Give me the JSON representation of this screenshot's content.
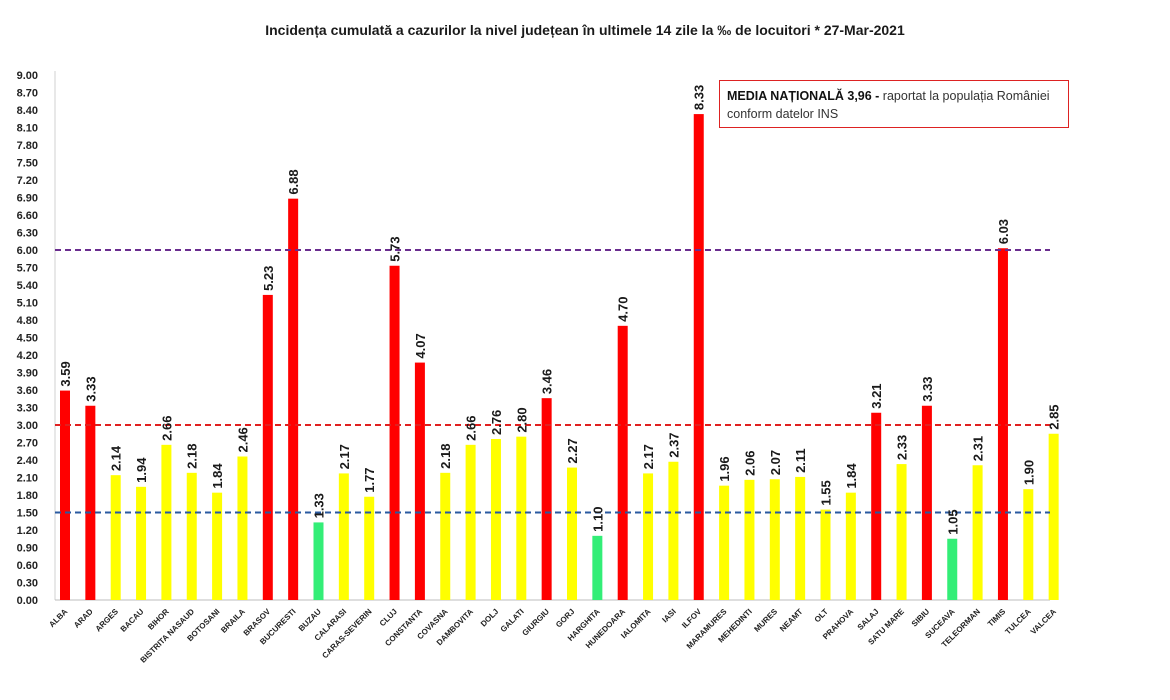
{
  "title": "Incidența cumulată a cazurilor la nivel județean în ultimele 14 zile la ‰ de locuitori * 27-Mar-2021",
  "annotation": {
    "bold": "MEDIA NAȚIONALĂ  3,96 -",
    "line1": " raportat la populația României",
    "line2": "conform datelor INS"
  },
  "colors": {
    "red": "#ff0000",
    "yellow": "#ffff00",
    "green": "#33ee77",
    "line_high": "#6a2d8f",
    "line_mid": "#e02020",
    "line_low": "#2a5aa0"
  },
  "chart_data": {
    "type": "bar",
    "categories": [
      "ALBA",
      "ARAD",
      "ARGES",
      "BACAU",
      "BIHOR",
      "BISTRITA NASAUD",
      "BOTOSANI",
      "BRAILA",
      "BRASOV",
      "BUCURESTI",
      "BUZAU",
      "CALARASI",
      "CARAS-SEVERIN",
      "CLUJ",
      "CONSTANTA",
      "COVASNA",
      "DAMBOVITA",
      "DOLJ",
      "GALATI",
      "GIURGIU",
      "GORJ",
      "HARGHITA",
      "HUNEDOARA",
      "IALOMITA",
      "IASI",
      "ILFOV",
      "MARAMURES",
      "MEHEDINTI",
      "MURES",
      "NEAMT",
      "OLT",
      "PRAHOVA",
      "SALAJ",
      "SATU MARE",
      "SIBIU",
      "SUCEAVA",
      "TELEORMAN",
      "TIMIS",
      "TULCEA",
      "VALCEA"
    ],
    "values": [
      3.59,
      3.33,
      2.14,
      1.94,
      2.66,
      2.18,
      1.84,
      2.46,
      5.23,
      6.88,
      1.33,
      2.17,
      1.77,
      5.73,
      4.07,
      2.18,
      2.66,
      2.76,
      2.8,
      3.46,
      2.27,
      1.1,
      4.7,
      2.17,
      2.37,
      8.33,
      1.96,
      2.06,
      2.07,
      2.11,
      1.55,
      1.84,
      3.21,
      2.33,
      3.33,
      1.05,
      2.31,
      6.03,
      1.9,
      2.85
    ],
    "value_labels": [
      "3.59",
      "3.33",
      "2.14",
      "1.94",
      "2.66",
      "2.18",
      "1.84",
      "2.46",
      "5.23",
      "6.88",
      "1.33",
      "2.17",
      "1.77",
      "5.73",
      "4.07",
      "2.18",
      "2.66",
      "2.76",
      "2.80",
      "3.46",
      "2.27",
      "1.10",
      "4.70",
      "2.17",
      "2.37",
      "8.33",
      "1.96",
      "2.06",
      "2.07",
      "2.11",
      "1.55",
      "1.84",
      "3.21",
      "2.33",
      "3.33",
      "1.05",
      "2.31",
      "6.03",
      "1.90",
      "2.85"
    ],
    "bar_colors": [
      "red",
      "red",
      "yellow",
      "yellow",
      "yellow",
      "yellow",
      "yellow",
      "yellow",
      "red",
      "red",
      "green",
      "yellow",
      "yellow",
      "red",
      "red",
      "yellow",
      "yellow",
      "yellow",
      "yellow",
      "red",
      "yellow",
      "green",
      "red",
      "yellow",
      "yellow",
      "red",
      "yellow",
      "yellow",
      "yellow",
      "yellow",
      "yellow",
      "yellow",
      "red",
      "yellow",
      "red",
      "green",
      "yellow",
      "red",
      "yellow",
      "yellow"
    ],
    "ylim": [
      0,
      9
    ],
    "yticks": [
      "0.00",
      "0.30",
      "0.60",
      "0.90",
      "1.20",
      "1.50",
      "1.80",
      "2.10",
      "2.40",
      "2.70",
      "3.00",
      "3.30",
      "3.60",
      "3.90",
      "4.20",
      "4.50",
      "4.80",
      "5.10",
      "5.40",
      "5.70",
      "6.00",
      "6.30",
      "6.60",
      "6.90",
      "7.20",
      "7.50",
      "7.80",
      "8.10",
      "8.40",
      "8.70",
      "9.00"
    ],
    "thresholds": [
      {
        "value": 6.0,
        "color": "line_high"
      },
      {
        "value": 3.0,
        "color": "line_mid"
      },
      {
        "value": 1.5,
        "color": "line_low"
      }
    ],
    "grid": false,
    "legend": "none"
  }
}
